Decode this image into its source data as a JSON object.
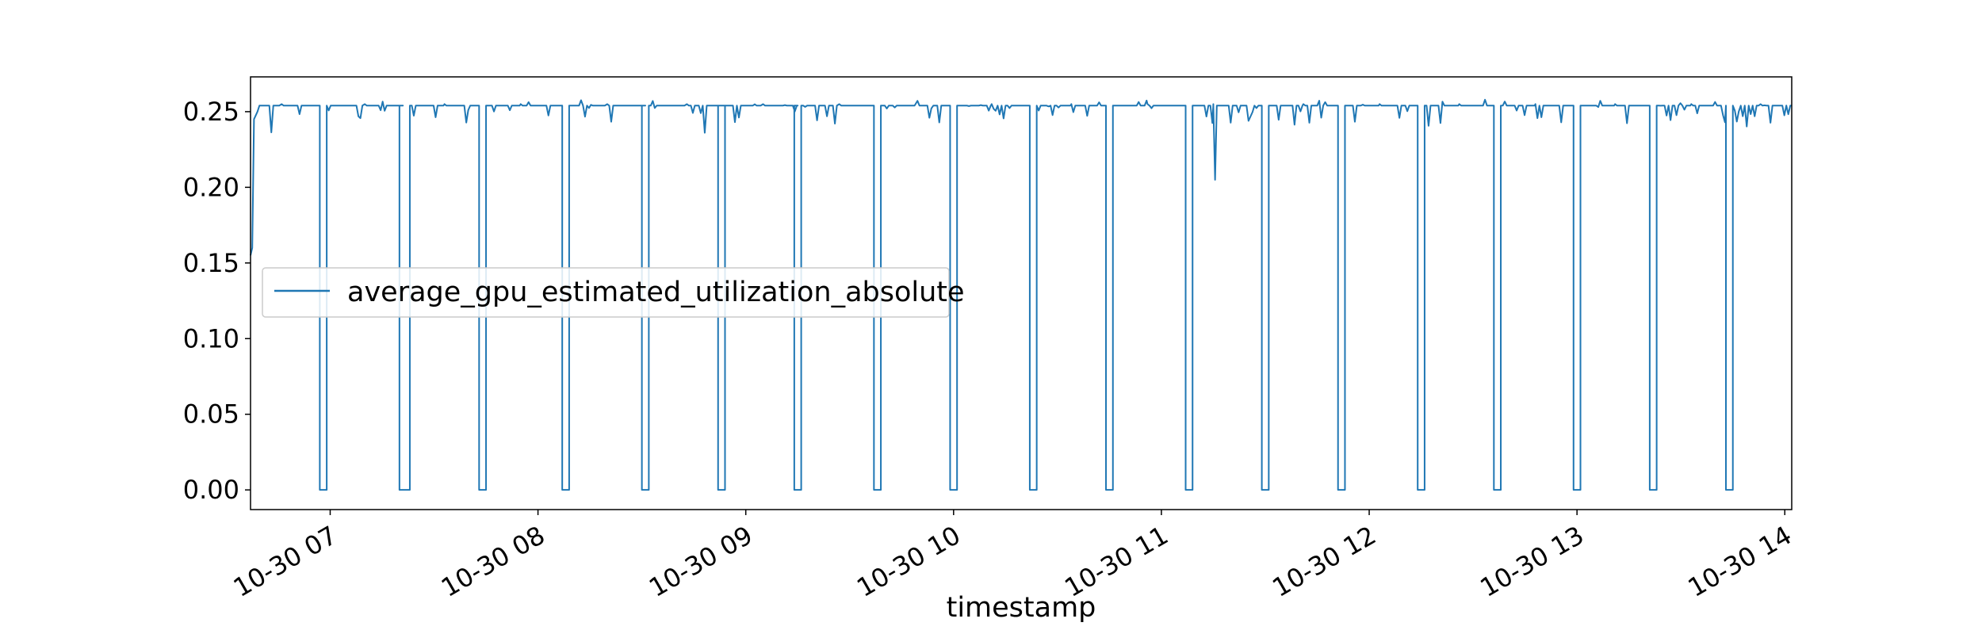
{
  "chart_data": {
    "type": "line",
    "title": "",
    "xlabel": "timestamp",
    "ylabel": "",
    "xlim": [
      "2023-10-30 06:37",
      "2023-10-30 14:02"
    ],
    "ylim": [
      -0.013,
      0.273
    ],
    "grid": false,
    "legend_placement": "center-left",
    "x_ticks": [
      "2023-10-30 07:00",
      "2023-10-30 08:00",
      "2023-10-30 09:00",
      "2023-10-30 10:00",
      "2023-10-30 11:00",
      "2023-10-30 12:00",
      "2023-10-30 13:00",
      "2023-10-30 14:00"
    ],
    "x_tick_labels": [
      "10-30 07",
      "10-30 08",
      "10-30 09",
      "10-30 10",
      "10-30 11",
      "10-30 12",
      "10-30 13",
      "10-30 14"
    ],
    "y_ticks": [
      0.0,
      0.05,
      0.1,
      0.15,
      0.2,
      0.25
    ],
    "y_tick_labels": [
      "0.00",
      "0.05",
      "0.10",
      "0.15",
      "0.20",
      "0.25"
    ],
    "series": [
      {
        "name": "average_gpu_estimated_utilization_absolute",
        "color": "#1f77b4",
        "x": [
          "2023-10-30 06:37",
          "2023-10-30 06:37:30",
          "2023-10-30 06:38",
          "2023-10-30 06:39",
          "2023-10-30 06:46",
          "2023-10-30 06:52",
          "2023-10-30 06:57",
          "2023-10-30 06:57",
          "2023-10-30 06:59",
          "2023-10-30 06:59",
          "2023-10-30 07:10",
          "2023-10-30 07:21",
          "2023-10-30 07:20",
          "2023-10-30 07:20",
          "2023-10-30 07:23",
          "2023-10-30 07:23",
          "2023-10-30 07:33",
          "2023-10-30 07:43",
          "2023-10-30 07:43",
          "2023-10-30 07:43",
          "2023-10-30 07:45",
          "2023-10-30 07:45",
          "2023-10-30 07:55",
          "2023-10-30 08:05",
          "2023-10-30 08:07",
          "2023-10-30 08:07",
          "2023-10-30 08:09",
          "2023-10-30 08:09",
          "2023-10-30 08:20",
          "2023-10-30 08:31",
          "2023-10-30 08:30",
          "2023-10-30 08:30",
          "2023-10-30 08:32",
          "2023-10-30 08:32",
          "2023-10-30 08:43",
          "2023-10-30 08:54",
          "2023-10-30 08:52",
          "2023-10-30 08:52",
          "2023-10-30 08:54",
          "2023-10-30 08:54",
          "2023-10-30 09:05",
          "2023-10-30 09:15",
          "2023-10-30 09:14",
          "2023-10-30 09:14",
          "2023-10-30 09:16",
          "2023-10-30 09:16",
          "2023-10-30 09:27",
          "2023-10-30 09:36",
          "2023-10-30 09:37",
          "2023-10-30 09:37",
          "2023-10-30 09:39",
          "2023-10-30 09:39",
          "2023-10-30 09:49",
          "2023-10-30 09:58",
          "2023-10-30 09:59",
          "2023-10-30 09:59",
          "2023-10-30 10:01",
          "2023-10-30 10:01",
          "2023-10-30 10:11",
          "2023-10-30 10:21",
          "2023-10-30 10:22",
          "2023-10-30 10:22",
          "2023-10-30 10:24",
          "2023-10-30 10:24",
          "2023-10-30 10:34",
          "2023-10-30 10:44",
          "2023-10-30 10:44",
          "2023-10-30 10:44",
          "2023-10-30 10:46",
          "2023-10-30 10:46",
          "2023-10-30 10:56",
          "2023-10-30 11:06",
          "2023-10-30 11:07",
          "2023-10-30 11:07",
          "2023-10-30 11:07",
          "2023-10-30 11:09",
          "2023-10-30 11:09",
          "2023-10-30 11:15",
          "2023-10-30 11:15",
          "2023-10-30 11:15:30",
          "2023-10-30 11:16",
          "2023-10-30 11:29",
          "2023-10-30 11:29",
          "2023-10-30 11:29",
          "2023-10-30 11:31",
          "2023-10-30 11:31",
          "2023-10-30 11:41",
          "2023-10-30 11:51",
          "2023-10-30 11:51",
          "2023-10-30 11:51",
          "2023-10-30 11:53",
          "2023-10-30 11:53",
          "2023-10-30 12:03",
          "2023-10-30 12:13",
          "2023-10-30 12:14",
          "2023-10-30 12:14",
          "2023-10-30 12:16",
          "2023-10-30 12:16",
          "2023-10-30 12:26",
          "2023-10-30 12:35",
          "2023-10-30 12:36",
          "2023-10-30 12:36",
          "2023-10-30 12:38",
          "2023-10-30 12:38",
          "2023-10-30 12:48",
          "2023-10-30 12:57",
          "2023-10-30 12:59",
          "2023-10-30 12:59",
          "2023-10-30 13:01",
          "2023-10-30 13:01",
          "2023-10-30 13:11",
          "2023-10-30 13:21",
          "2023-10-30 13:21",
          "2023-10-30 13:21",
          "2023-10-30 13:23",
          "2023-10-30 13:23",
          "2023-10-30 13:33",
          "2023-10-30 13:43",
          "2023-10-30 13:43",
          "2023-10-30 13:43",
          "2023-10-30 13:45",
          "2023-10-30 13:45",
          "2023-10-30 13:53",
          "2023-10-30 14:02"
        ],
        "y": [
          0.155,
          0.16,
          0.245,
          0.25,
          0.255,
          0.254,
          0.254,
          0.0,
          0.0,
          0.254,
          0.255,
          0.254,
          0.254,
          0.0,
          0.0,
          0.254,
          0.255,
          0.254,
          0.254,
          0.0,
          0.0,
          0.254,
          0.255,
          0.254,
          0.254,
          0.0,
          0.0,
          0.254,
          0.255,
          0.254,
          0.254,
          0.0,
          0.0,
          0.254,
          0.255,
          0.254,
          0.254,
          0.0,
          0.0,
          0.254,
          0.255,
          0.254,
          0.254,
          0.0,
          0.0,
          0.254,
          0.255,
          0.254,
          0.254,
          0.0,
          0.0,
          0.254,
          0.255,
          0.254,
          0.254,
          0.0,
          0.0,
          0.254,
          0.255,
          0.254,
          0.254,
          0.0,
          0.0,
          0.254,
          0.255,
          0.254,
          0.254,
          0.0,
          0.0,
          0.254,
          0.255,
          0.254,
          0.254,
          0.254,
          0.0,
          0.0,
          0.254,
          0.255,
          0.254,
          0.205,
          0.254,
          0.254,
          0.254,
          0.0,
          0.0,
          0.254,
          0.255,
          0.254,
          0.254,
          0.0,
          0.0,
          0.254,
          0.255,
          0.254,
          0.254,
          0.0,
          0.0,
          0.254,
          0.255,
          0.254,
          0.254,
          0.0,
          0.0,
          0.254,
          0.255,
          0.254,
          0.254,
          0.0,
          0.0,
          0.254,
          0.255,
          0.254,
          0.254,
          0.0,
          0.0,
          0.254,
          0.255,
          0.254,
          0.254,
          0.0,
          0.0,
          0.254,
          0.255,
          0.254
        ]
      }
    ]
  }
}
